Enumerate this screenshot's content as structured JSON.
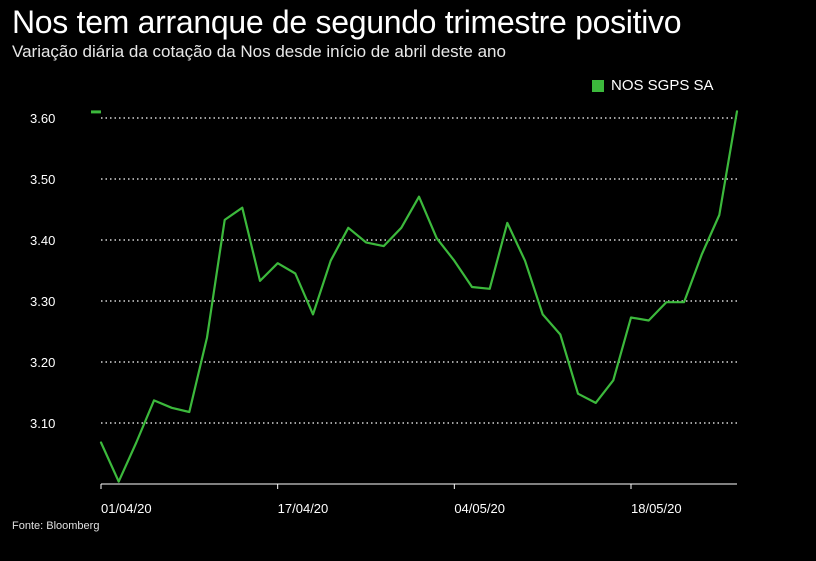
{
  "header": {
    "title": "Nos tem arranque de segundo trimestre positivo",
    "subtitle": "Variação diária da cotação da Nos desde início de abril deste ano"
  },
  "footer": {
    "source": "Fonte: Bloomberg"
  },
  "colors": {
    "background": "#000000",
    "line": "#3cb93c",
    "grid": "#ffffff",
    "text": "#ffffff"
  },
  "chart_data": {
    "type": "line",
    "title": "Nos tem arranque de segundo trimestre positivo",
    "subtitle": "Variação diária da cotação da Nos desde início de abril deste ano",
    "xlabel": "",
    "ylabel": "",
    "legend": {
      "placement": "top-right",
      "entries": [
        "NOS SGPS SA"
      ]
    },
    "grid": "horizontal dotted",
    "ylim": [
      3.0,
      3.6
    ],
    "y_ticks": [
      3.1,
      3.2,
      3.3,
      3.4,
      3.5,
      3.6
    ],
    "y_tick_labels": [
      "3.10",
      "3.20",
      "3.30",
      "3.40",
      "3.50",
      "3.60"
    ],
    "x_tick_labels": [
      "01/04/20",
      "17/04/20",
      "04/05/20",
      "18/05/20"
    ],
    "x_tick_index": [
      0,
      10,
      20,
      30
    ],
    "last_value_marker": 3.61,
    "series": [
      {
        "name": "NOS SGPS SA",
        "values": [
          3.068,
          3.004,
          3.068,
          3.137,
          3.125,
          3.118,
          3.24,
          3.433,
          3.453,
          3.333,
          3.362,
          3.345,
          3.278,
          3.366,
          3.42,
          3.396,
          3.39,
          3.42,
          3.471,
          3.403,
          3.366,
          3.323,
          3.32,
          3.428,
          3.366,
          3.278,
          3.245,
          3.148,
          3.133,
          3.17,
          3.273,
          3.268,
          3.298,
          3.298,
          3.376,
          3.441,
          3.611
        ]
      }
    ]
  }
}
